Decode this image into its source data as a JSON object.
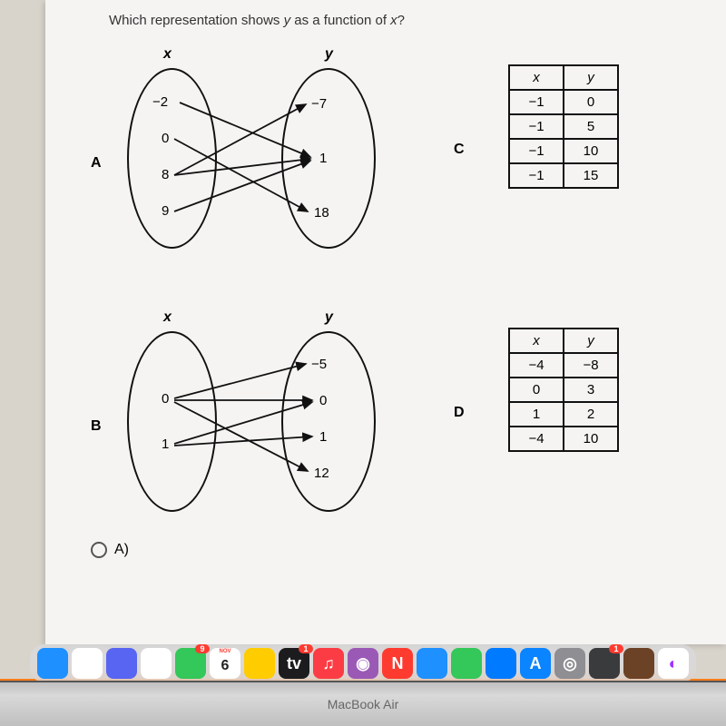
{
  "question_prefix": "Which representation shows ",
  "question_y": "y",
  "question_mid": " as a function of ",
  "question_x": "x",
  "question_suffix": "?",
  "labels": {
    "A": "A",
    "B": "B",
    "C": "C",
    "D": "D",
    "x": "x",
    "y": "y"
  },
  "mapA": {
    "domain": [
      "−2",
      "0",
      "8",
      "9"
    ],
    "range": [
      "−7",
      "1",
      "18"
    ],
    "arrows": [
      [
        0,
        1
      ],
      [
        1,
        2
      ],
      [
        2,
        0
      ],
      [
        2,
        1
      ],
      [
        3,
        1
      ]
    ]
  },
  "mapB": {
    "domain": [
      "0",
      "1"
    ],
    "range": [
      "−5",
      "0",
      "1",
      "12"
    ],
    "arrows": [
      [
        0,
        0
      ],
      [
        0,
        1
      ],
      [
        0,
        3
      ],
      [
        1,
        1
      ],
      [
        1,
        2
      ]
    ]
  },
  "tableC": {
    "headers": [
      "x",
      "y"
    ],
    "rows": [
      [
        "−1",
        "0"
      ],
      [
        "−1",
        "5"
      ],
      [
        "−1",
        "10"
      ],
      [
        "−1",
        "15"
      ]
    ]
  },
  "tableD": {
    "headers": [
      "x",
      "y"
    ],
    "rows": [
      [
        "−4",
        "−8"
      ],
      [
        "0",
        "3"
      ],
      [
        "1",
        "2"
      ],
      [
        "−4",
        "10"
      ]
    ]
  },
  "radio_A": "A)",
  "dock": [
    {
      "name": "finder",
      "bg": "#1e90ff",
      "text": ""
    },
    {
      "name": "photos",
      "bg": "#ffffff",
      "text": ""
    },
    {
      "name": "discord",
      "bg": "#5865f2",
      "text": ""
    },
    {
      "name": "reminders",
      "bg": "#ffffff",
      "text": ""
    },
    {
      "name": "messages",
      "bg": "#34c759",
      "text": "",
      "badge": "9"
    },
    {
      "name": "calendar",
      "bg": "#ffffff",
      "text": "6",
      "textColor": "#222",
      "top": "NOV"
    },
    {
      "name": "notes",
      "bg": "#ffcc00",
      "text": ""
    },
    {
      "name": "appletv",
      "bg": "#1c1c1e",
      "text": "tv",
      "badge": "1"
    },
    {
      "name": "music",
      "bg": "#fc3c44",
      "text": "♫"
    },
    {
      "name": "podcasts",
      "bg": "#9b59b6",
      "text": "◉"
    },
    {
      "name": "news",
      "bg": "#ff3b30",
      "text": "N"
    },
    {
      "name": "safari",
      "bg": "#1e90ff",
      "text": ""
    },
    {
      "name": "numbers",
      "bg": "#34c759",
      "text": ""
    },
    {
      "name": "keynote",
      "bg": "#007aff",
      "text": ""
    },
    {
      "name": "appstore",
      "bg": "#0a84ff",
      "text": "A"
    },
    {
      "name": "settings",
      "bg": "#8e8e93",
      "text": "◎"
    },
    {
      "name": "roblox",
      "bg": "#393b3d",
      "text": "",
      "badge": "1"
    },
    {
      "name": "minecraft",
      "bg": "#6b4226",
      "text": ""
    },
    {
      "name": "messenger",
      "bg": "#ffffff",
      "text": "◐",
      "textColor": "#a033ff"
    }
  ],
  "laptop": "MacBook Air"
}
